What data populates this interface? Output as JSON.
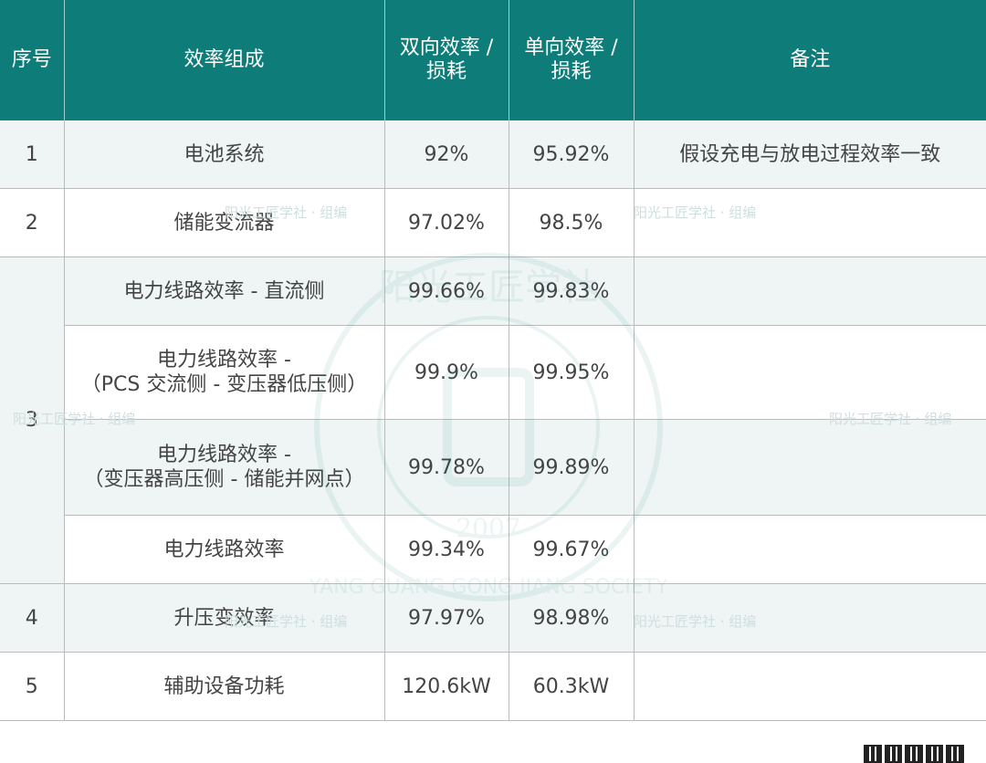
{
  "table": {
    "headers": {
      "index": "序号",
      "component": "效率组成",
      "bidirectional_line1": "双向效率 /",
      "bidirectional_line2": "损耗",
      "unidirectional_line1": "单向效率 /",
      "unidirectional_line2": "损耗",
      "remark": "备注"
    },
    "rows": [
      {
        "index": "1",
        "component": "电池系统",
        "bidirectional": "92%",
        "unidirectional": "95.92%",
        "remark": "假设充电与放电过程效率一致"
      },
      {
        "index": "2",
        "component": "储能变流器",
        "bidirectional": "97.02%",
        "unidirectional": "98.5%",
        "remark": ""
      },
      {
        "index": "3",
        "component": "电力线路效率 - 直流侧",
        "bidirectional": "99.66%",
        "unidirectional": "99.83%",
        "remark": ""
      },
      {
        "index": "",
        "component_line1": "电力线路效率 -",
        "component_line2": "（PCS 交流侧 - 变压器低压侧）",
        "bidirectional": "99.9%",
        "unidirectional": "99.95%",
        "remark": ""
      },
      {
        "index": "",
        "component_line1": "电力线路效率 -",
        "component_line2": "（变压器高压侧 - 储能并网点）",
        "bidirectional": "99.78%",
        "unidirectional": "99.89%",
        "remark": ""
      },
      {
        "index": "",
        "component": "电力线路效率",
        "bidirectional": "99.34%",
        "unidirectional": "99.67%",
        "remark": ""
      },
      {
        "index": "4",
        "component": "升压变效率",
        "bidirectional": "97.97%",
        "unidirectional": "98.98%",
        "remark": ""
      },
      {
        "index": "5",
        "component": "辅助设备功耗",
        "bidirectional": "120.6kW",
        "unidirectional": "60.3kW",
        "remark": ""
      }
    ]
  },
  "watermark": {
    "text": "阳光工匠学社 · 组编",
    "seal_year": "2007",
    "seal_arc_text": "阳光工匠学社",
    "seal_arc_latin": "YANG GUANG GONG JIANG SOCIETY"
  },
  "colors": {
    "header_bg": "#0e7c78",
    "shade_bg": "#eef5f4",
    "border": "#bbbbbb"
  },
  "icons": [
    "qr-code-icon"
  ]
}
